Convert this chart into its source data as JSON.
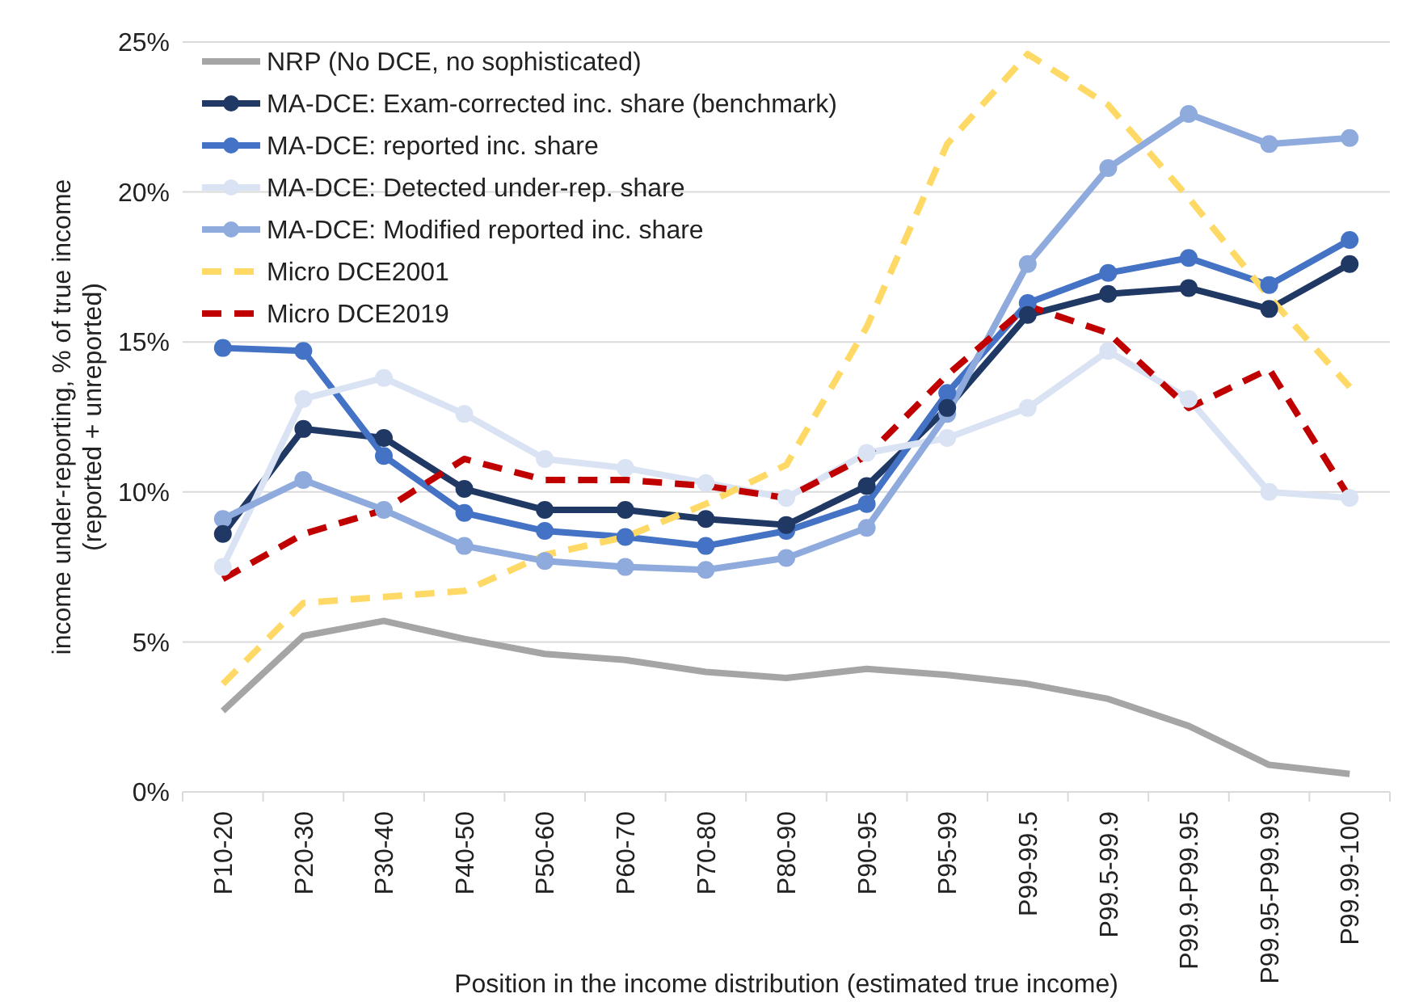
{
  "chart_data": {
    "type": "line",
    "xlabel": "Position in the income distribution (estimated true income)",
    "ylabel": "income under-reporting, % of true income\n(reported + unreported)",
    "categories": [
      "P10-20",
      "P20-30",
      "P30-40",
      "P40-50",
      "P50-60",
      "P60-70",
      "P70-80",
      "P80-90",
      "P90-95",
      "P95-99",
      "P99-99.5",
      "P99.5-99.9",
      "P99.9-P99.95",
      "P99.95-P99.99",
      "P99.99-100"
    ],
    "ylim": [
      0,
      25
    ],
    "yticks": [
      {
        "value": 0,
        "label": "0%"
      },
      {
        "value": 5,
        "label": "5%"
      },
      {
        "value": 10,
        "label": "10%"
      },
      {
        "value": 15,
        "label": "15%"
      },
      {
        "value": 20,
        "label": "20%"
      },
      {
        "value": 25,
        "label": "25%"
      }
    ],
    "grid": "y",
    "legend": "top left",
    "series": [
      {
        "name": "NRP (No DCE, no sophisticated)",
        "color": "#a5a5a5",
        "marker": "none",
        "line_style": "solid",
        "values": [
          2.7,
          5.2,
          5.7,
          5.1,
          4.6,
          4.4,
          4.0,
          3.8,
          4.1,
          3.9,
          3.6,
          3.1,
          2.2,
          0.9,
          0.6
        ]
      },
      {
        "name": "MA-DCE: Exam-corrected inc. share (benchmark)",
        "color": "#203864",
        "marker": "circle",
        "line_style": "solid",
        "values": [
          8.6,
          12.1,
          11.8,
          10.1,
          9.4,
          9.4,
          9.1,
          8.9,
          10.2,
          12.8,
          15.9,
          16.6,
          16.8,
          16.1,
          17.6
        ]
      },
      {
        "name": "MA-DCE: reported inc. share",
        "color": "#4472c4",
        "marker": "circle",
        "line_style": "solid",
        "values": [
          14.8,
          14.7,
          11.2,
          9.3,
          8.7,
          8.5,
          8.2,
          8.7,
          9.6,
          13.3,
          16.3,
          17.3,
          17.8,
          16.9,
          18.4
        ]
      },
      {
        "name": "MA-DCE: Detected under-rep. share",
        "color": "#dae3f3",
        "marker": "circle",
        "line_style": "solid",
        "values": [
          7.5,
          13.1,
          13.8,
          12.6,
          11.1,
          10.8,
          10.3,
          9.8,
          11.3,
          11.8,
          12.8,
          14.7,
          13.1,
          10.0,
          9.8
        ]
      },
      {
        "name": "MA-DCE: Modified reported inc. share",
        "color": "#8faadc",
        "marker": "circle",
        "line_style": "solid",
        "values": [
          9.1,
          10.4,
          9.4,
          8.2,
          7.7,
          7.5,
          7.4,
          7.8,
          8.8,
          12.6,
          17.6,
          20.8,
          22.6,
          21.6,
          21.8
        ]
      },
      {
        "name": "Micro DCE2001",
        "color": "#ffd966",
        "marker": "none",
        "line_style": "dashed",
        "values": [
          3.6,
          6.3,
          6.5,
          6.7,
          7.9,
          8.5,
          9.6,
          10.9,
          15.5,
          21.6,
          24.6,
          22.9,
          19.8,
          16.5,
          13.5
        ]
      },
      {
        "name": "Micro DCE2019",
        "color": "#c00000",
        "marker": "none",
        "line_style": "dashed",
        "values": [
          7.1,
          8.6,
          9.4,
          11.1,
          10.4,
          10.4,
          10.2,
          9.8,
          11.2,
          13.9,
          16.2,
          15.3,
          12.8,
          14.1,
          9.8
        ]
      }
    ]
  }
}
